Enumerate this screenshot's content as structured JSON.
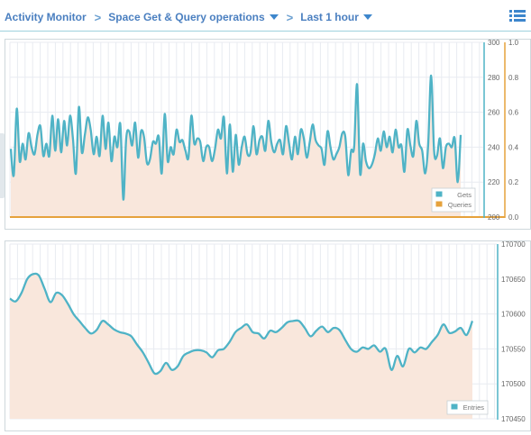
{
  "header": {
    "breadcrumb": [
      {
        "label": "Activity Monitor",
        "dropdown": false
      },
      {
        "label": "Space Get & Query operations",
        "dropdown": true
      },
      {
        "label": "Last 1 hour",
        "dropdown": true
      }
    ],
    "separator": ">",
    "menu_icon": "list-icon"
  },
  "colors": {
    "accent": "#4a7fc0",
    "gets": "#4fb3c6",
    "queries": "#e6a23c",
    "area": "#f9e7dc",
    "grid": "#e8ebf1"
  },
  "chart_data": [
    {
      "type": "line",
      "title": "",
      "left_axis": {
        "range": [
          200,
          300
        ],
        "ticks": [
          "300",
          "280",
          "260",
          "240",
          "220",
          "200"
        ]
      },
      "right_axis": {
        "range": [
          0,
          1
        ],
        "ticks": [
          "1.0",
          "0.8",
          "0.6",
          "0.4",
          "0.2",
          "0.0"
        ]
      },
      "legend": {
        "position": "bottom-right"
      },
      "series": [
        {
          "name": "Gets",
          "axis": "left",
          "values": [
            239,
            224,
            262,
            232,
            242,
            233,
            248,
            240,
            236,
            247,
            252,
            235,
            242,
            235,
            258,
            238,
            256,
            237,
            255,
            241,
            258,
            245,
            225,
            263,
            237,
            247,
            257,
            250,
            236,
            246,
            235,
            258,
            239,
            254,
            232,
            246,
            240,
            253,
            210,
            245,
            249,
            241,
            254,
            234,
            249,
            246,
            231,
            233,
            243,
            242,
            246,
            225,
            259,
            232,
            240,
            236,
            250,
            243,
            244,
            238,
            234,
            258,
            242,
            245,
            243,
            232,
            240,
            240,
            232,
            239,
            250,
            245,
            257,
            225,
            253,
            226,
            247,
            230,
            240,
            246,
            236,
            237,
            252,
            236,
            244,
            246,
            238,
            255,
            243,
            237,
            242,
            244,
            236,
            252,
            242,
            233,
            246,
            236,
            250,
            245,
            234,
            243,
            253,
            244,
            241,
            239,
            230,
            249,
            240,
            233,
            236,
            240,
            248,
            246,
            224,
            238,
            240,
            276,
            225,
            242,
            232,
            228,
            230,
            236,
            245,
            238,
            249,
            240,
            246,
            237,
            250,
            240,
            241,
            226,
            250,
            241,
            235,
            255,
            242,
            238,
            225,
            241,
            281,
            238,
            235,
            245,
            228,
            240,
            242,
            240,
            245,
            220,
            247
          ]
        },
        {
          "name": "Queries",
          "axis": "right",
          "values": [
            0,
            0,
            0,
            0,
            0,
            0,
            0,
            0,
            0,
            0,
            0,
            0,
            0,
            0,
            0,
            0,
            0,
            0,
            0,
            0,
            0,
            0,
            0,
            0,
            0,
            0,
            0,
            0,
            0,
            0,
            0,
            0,
            0,
            0,
            0,
            0,
            0,
            0,
            0,
            0,
            0,
            0,
            0,
            0,
            0,
            0,
            0,
            0,
            0,
            0,
            0,
            0,
            0,
            0,
            0,
            0,
            0,
            0,
            0,
            0,
            0,
            0,
            0,
            0,
            0,
            0,
            0,
            0,
            0,
            0,
            0,
            0,
            0,
            0,
            0,
            0,
            0,
            0,
            0,
            0,
            0,
            0,
            0,
            0,
            0,
            0,
            0,
            0,
            0,
            0,
            0,
            0,
            0,
            0,
            0,
            0,
            0,
            0,
            0,
            0,
            0,
            0,
            0,
            0,
            0,
            0,
            0,
            0,
            0,
            0,
            0,
            0,
            0,
            0,
            0,
            0,
            0,
            0,
            0,
            0,
            0,
            0,
            0,
            0,
            0,
            0,
            0,
            0,
            0,
            0,
            0,
            0,
            0,
            0,
            0,
            0,
            0,
            0,
            0,
            0,
            0,
            0,
            0,
            0,
            0,
            0,
            0,
            0,
            0,
            0,
            0,
            0,
            0
          ]
        }
      ]
    },
    {
      "type": "line",
      "title": "",
      "right_axis": {
        "range": [
          170450,
          170700
        ],
        "ticks": [
          "170700",
          "170650",
          "170600",
          "170550",
          "170500",
          "170450"
        ]
      },
      "legend": {
        "position": "bottom-right"
      },
      "series": [
        {
          "name": "Entries",
          "values": [
            170622,
            170618,
            170630,
            170650,
            170657,
            170655,
            170636,
            170617,
            170630,
            170627,
            170615,
            170600,
            170590,
            170580,
            170572,
            170577,
            170590,
            170585,
            170578,
            170574,
            170572,
            170568,
            170556,
            170545,
            170530,
            170515,
            170518,
            170530,
            170520,
            170525,
            170540,
            170545,
            170548,
            170548,
            170545,
            170538,
            170548,
            170550,
            170560,
            170574,
            170580,
            170585,
            170574,
            170572,
            170565,
            170576,
            170574,
            170580,
            170588,
            170590,
            170590,
            170580,
            170568,
            170576,
            170582,
            170574,
            170580,
            170577,
            170563,
            170550,
            170546,
            170552,
            170550,
            170555,
            170546,
            170550,
            170520,
            170540,
            170525,
            170550,
            170545,
            170552,
            170550,
            170560,
            170570,
            170585,
            170573,
            170575,
            170580,
            170570,
            170590
          ]
        }
      ]
    }
  ]
}
